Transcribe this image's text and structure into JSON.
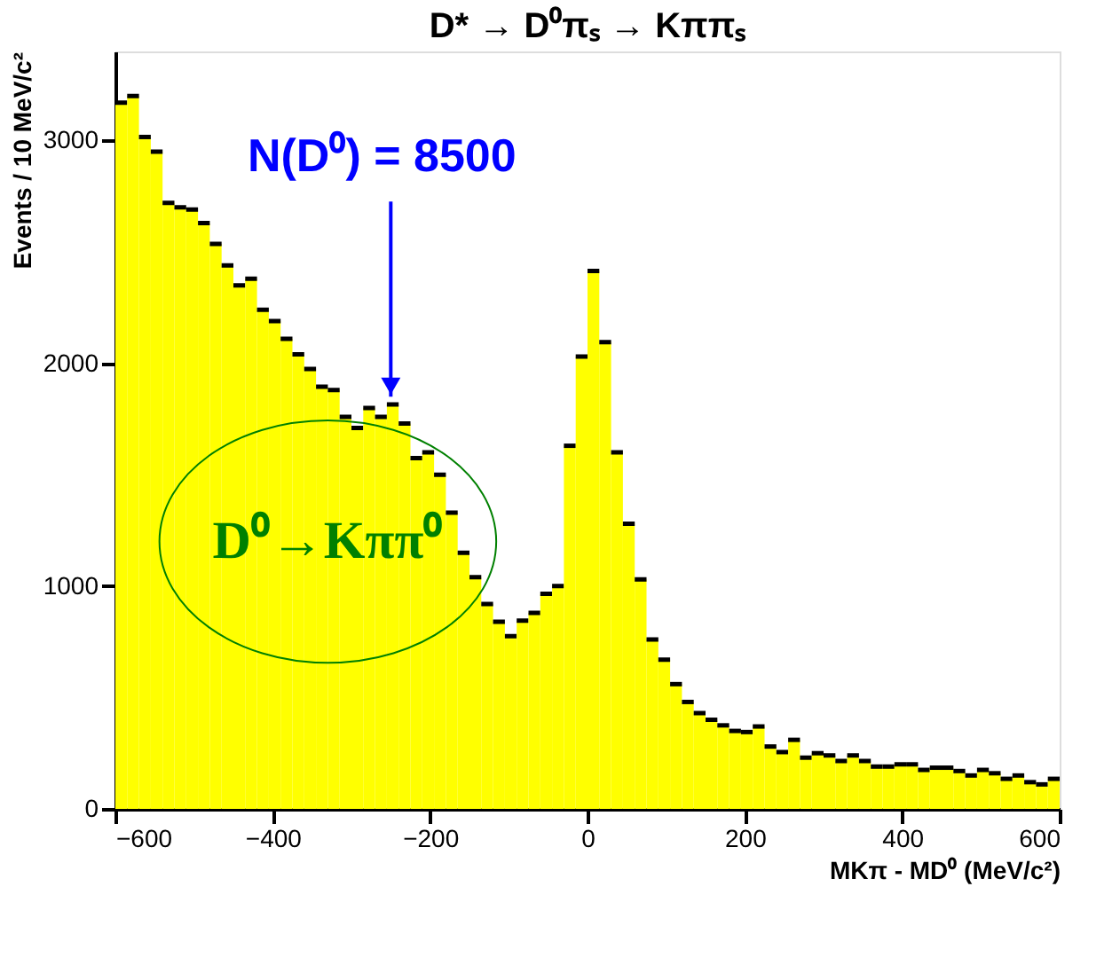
{
  "chart_data": {
    "type": "histogram",
    "title": "D* → D⁰πₛ → Kππₛ",
    "xlabel": "MKπ - MD⁰ (MeV/c²)",
    "ylabel": "Events / 10 MeV/c²",
    "bins": [
      -600,
      -585,
      -570,
      -555,
      -540,
      -525,
      -510,
      -495,
      -480,
      -465,
      -450,
      -435,
      -420,
      -405,
      -390,
      -375,
      -360,
      -345,
      -330,
      -315,
      -300,
      -285,
      -270,
      -255,
      -240,
      -225,
      -210,
      -195,
      -180,
      -165,
      -150,
      -135,
      -120,
      -105,
      -90,
      -75,
      -60,
      -45,
      -30,
      -15,
      0,
      15,
      30,
      45,
      60,
      75,
      90,
      105,
      120,
      135,
      150,
      165,
      180,
      195,
      210,
      225,
      240,
      255,
      270,
      285,
      300,
      315,
      330,
      345,
      360,
      375,
      390,
      405,
      420,
      435,
      450,
      465,
      480,
      495,
      510,
      525,
      540,
      555,
      570,
      585,
      600
    ],
    "values": [
      3170,
      3200,
      3016,
      2950,
      2720,
      2700,
      2690,
      2630,
      2536,
      2440,
      2350,
      2380,
      2240,
      2190,
      2110,
      2040,
      1975,
      1895,
      1880,
      1760,
      1710,
      1800,
      1760,
      1815,
      1730,
      1575,
      1600,
      1500,
      1330,
      1150,
      1040,
      920,
      840,
      775,
      845,
      880,
      965,
      1000,
      1630,
      2030,
      2415,
      2095,
      1600,
      1280,
      1030,
      760,
      670,
      560,
      480,
      430,
      400,
      375,
      350,
      345,
      370,
      280,
      255,
      310,
      230,
      250,
      240,
      215,
      240,
      215,
      190,
      190,
      200,
      200,
      175,
      185,
      185,
      170,
      150,
      175,
      160,
      135,
      150,
      120,
      110,
      135
    ],
    "color": "#ffff00",
    "xlim": [
      -600,
      600
    ],
    "xticks": [
      -600,
      -400,
      -200,
      0,
      200,
      400,
      600
    ],
    "ylim": [
      0,
      3400
    ],
    "yticks": [
      0,
      1000,
      2000,
      3000
    ],
    "grid": false,
    "annotations": [
      {
        "text": "N(D⁰) = 8500",
        "x": -250,
        "y": 1850
      },
      {
        "text": "D⁰→Kππ⁰",
        "x": -330,
        "y": 1200
      }
    ]
  }
}
